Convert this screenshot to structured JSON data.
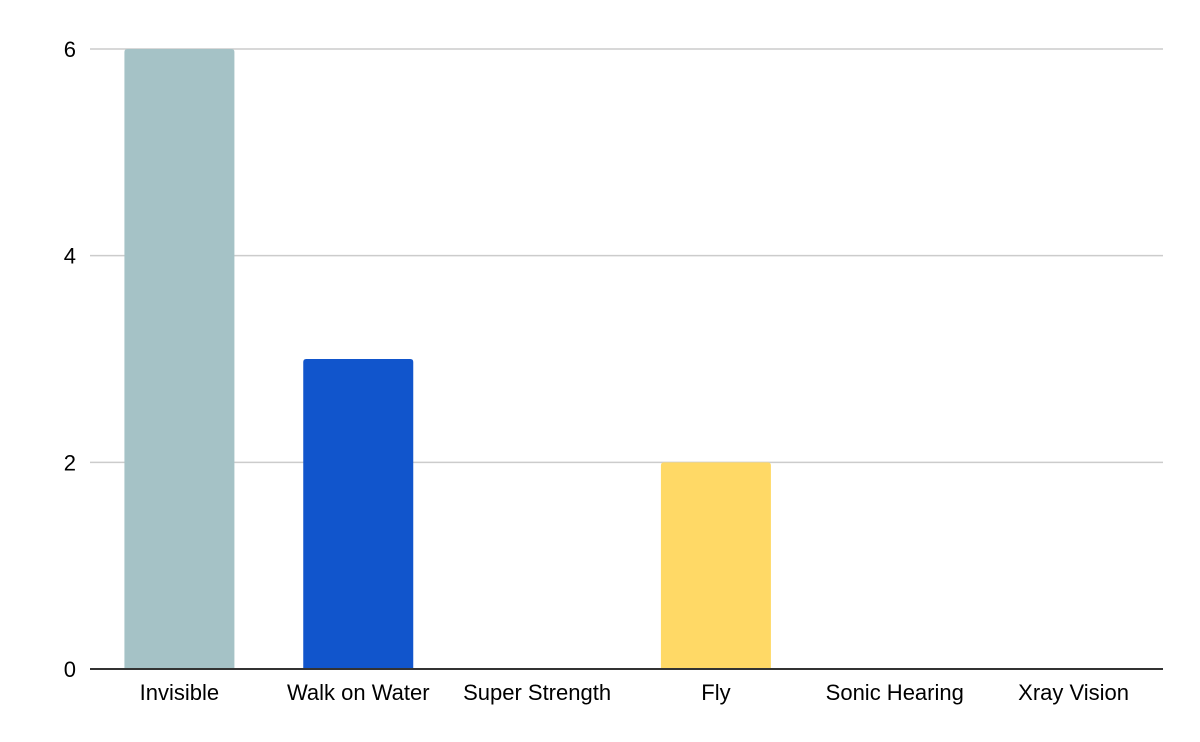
{
  "chart_data": {
    "type": "bar",
    "title": "",
    "xlabel": "",
    "ylabel": "",
    "categories": [
      "Invisible",
      "Walk on Water",
      "Super Strength",
      "Fly",
      "Sonic Hearing",
      "Xray Vision"
    ],
    "values": [
      6,
      3,
      0,
      2,
      0,
      0
    ],
    "colors": [
      "#a5c2c6",
      "#1155cc",
      "#f6b26b",
      "#ffd966",
      "#93c47d",
      "#8e7cc3"
    ],
    "ylim": [
      0,
      6
    ],
    "yticks": [
      0,
      2,
      4,
      6
    ],
    "grid": true,
    "legend": "none"
  }
}
